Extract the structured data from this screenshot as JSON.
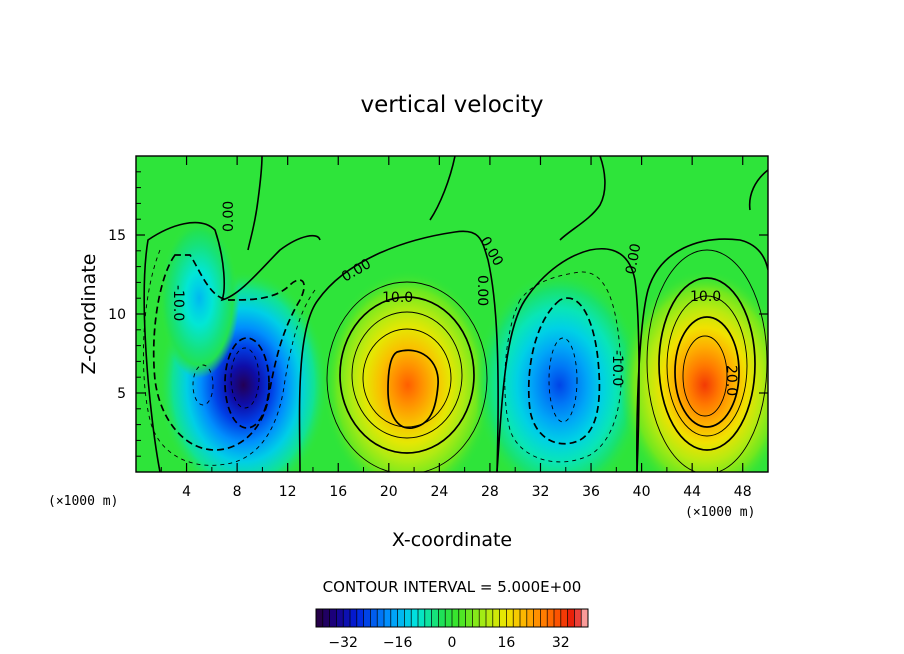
{
  "chart_data": {
    "type": "heatmap",
    "title": "vertical velocity",
    "xlabel": "X-coordinate",
    "ylabel": "Z-coordinate",
    "x_unit_note": "(×1000 m)",
    "x_unit_note_right": "(×1000 m)",
    "xlim": [
      0,
      50
    ],
    "ylim": [
      0,
      20
    ],
    "xticks": [
      4,
      8,
      12,
      16,
      20,
      24,
      28,
      32,
      36,
      40,
      44,
      48
    ],
    "yticks": [
      5,
      10,
      15
    ],
    "grid": false,
    "contour_interval_text": "CONTOUR INTERVAL = 5.000E+00",
    "colorbar": {
      "min": -40,
      "max": 40,
      "ticks": [
        -32,
        -16,
        0,
        16,
        32
      ],
      "tick_labels": [
        "−32",
        "−16",
        "0",
        "16",
        "32"
      ]
    },
    "features": [
      {
        "name": "downdraft",
        "x": 8.5,
        "z": 5.5,
        "peak": -38
      },
      {
        "name": "updraft",
        "x": 21.5,
        "z": 5.5,
        "peak": 30
      },
      {
        "name": "downdraft",
        "x": 33.5,
        "z": 5.5,
        "peak": -25
      },
      {
        "name": "updraft",
        "x": 45.0,
        "z": 5.5,
        "peak": 33
      },
      {
        "name": "weak downdraft",
        "x": 5.0,
        "z": 11.0,
        "peak": -15
      }
    ],
    "contour_labels": [
      "0.00",
      "0.00",
      "0.00",
      "0.00",
      "0.00",
      "10.0",
      "-10.0",
      "-10.0",
      "10.0",
      "20.0"
    ]
  }
}
